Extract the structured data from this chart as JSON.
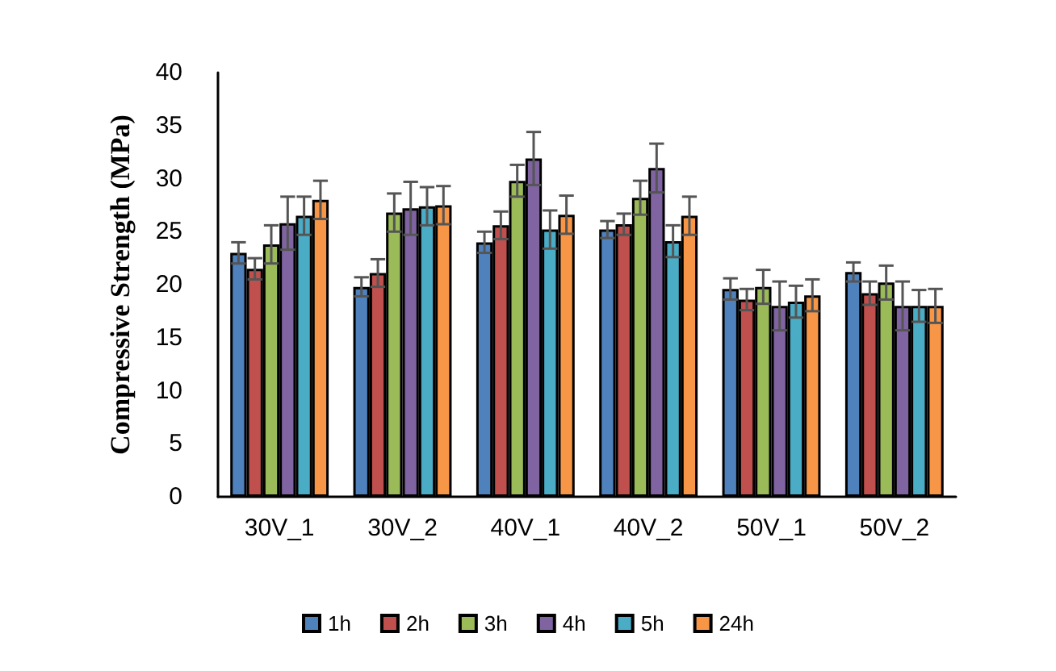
{
  "chart_data": {
    "type": "bar",
    "ylabel": "Compressive Strength (MPa)",
    "categories": [
      "30V_1",
      "30V_2",
      "40V_1",
      "40V_2",
      "50V_1",
      "50V_2"
    ],
    "series": [
      {
        "name": "1h",
        "color": "#4f81bd",
        "values": [
          23,
          19.8,
          24,
          25.2,
          19.6,
          21.2
        ],
        "errors": [
          1,
          0.9,
          1,
          0.8,
          1,
          0.9
        ]
      },
      {
        "name": "2h",
        "color": "#c0504d",
        "values": [
          21.5,
          21.1,
          25.6,
          25.7,
          18.6,
          19.2
        ],
        "errors": [
          1,
          1.3,
          1.3,
          1,
          1,
          1.1
        ]
      },
      {
        "name": "3h",
        "color": "#9bbb59",
        "values": [
          23.8,
          26.8,
          29.8,
          28.2,
          19.8,
          20.2
        ],
        "errors": [
          1.8,
          1.8,
          1.5,
          1.6,
          1.6,
          1.6
        ]
      },
      {
        "name": "4h",
        "color": "#8064a2",
        "values": [
          25.8,
          27.2,
          31.9,
          31,
          18,
          18
        ],
        "errors": [
          2.5,
          2.5,
          2.5,
          2.3,
          2.3,
          2.3
        ]
      },
      {
        "name": "5h",
        "color": "#4bacc6",
        "values": [
          26.5,
          27.4,
          25.2,
          24.1,
          18.4,
          18
        ],
        "errors": [
          1.8,
          1.8,
          1.8,
          1.5,
          1.5,
          1.5
        ]
      },
      {
        "name": "24h",
        "color": "#f79646",
        "values": [
          28,
          27.5,
          26.6,
          26.5,
          19,
          18
        ],
        "errors": [
          1.8,
          1.8,
          1.8,
          1.8,
          1.5,
          1.6
        ]
      }
    ],
    "ylim": [
      0,
      40
    ],
    "yticks": [
      0,
      5,
      10,
      15,
      20,
      25,
      30,
      35,
      40
    ],
    "grid": false,
    "legend": "bottom"
  }
}
